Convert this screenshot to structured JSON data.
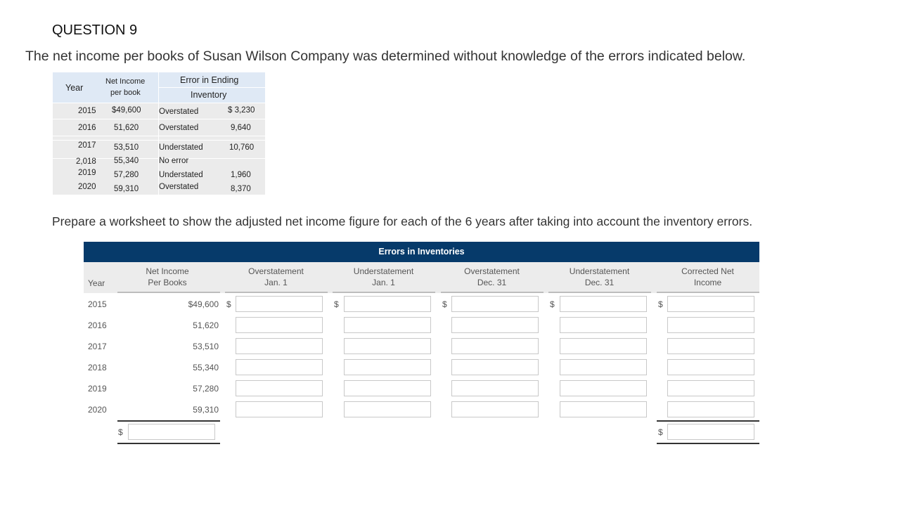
{
  "question_title": "QUESTION 9",
  "intro_text": "The net income per books of Susan Wilson Company was determined without knowledge of the errors indicated below.",
  "given_table": {
    "headers": {
      "year": "Year",
      "net_income_1": "Net Income",
      "net_income_2": "per book",
      "error_1": "Error in Ending",
      "error_2": "Inventory"
    },
    "rows": [
      {
        "year": "2015",
        "net_income": "$49,600",
        "error_type": "Overstated",
        "amount": "$ 3,230"
      },
      {
        "year": "2016",
        "net_income": "51,620",
        "error_type": "Overstated",
        "amount": "9,640"
      },
      {
        "year": "2017",
        "net_income": "53,510",
        "error_type": "Understated",
        "amount": "10,760"
      },
      {
        "year": "2,018",
        "net_income": "55,340",
        "error_type": "No error",
        "amount": ""
      },
      {
        "year": "2019",
        "net_income": "57,280",
        "error_type": "Understated",
        "amount": "1,960"
      },
      {
        "year": "2020",
        "net_income": "59,310",
        "error_type": "Overstated",
        "amount": "8,370"
      }
    ]
  },
  "prepare_text": "Prepare a worksheet to show the adjusted net income figure for each of the 6 years after taking into account the inventory errors.",
  "worksheet": {
    "band_title": "Errors in Inventories",
    "headers": {
      "year": "Year",
      "net_income_1": "Net Income",
      "net_income_2": "Per Books",
      "over_jan_1": "Overstatement",
      "over_jan_2": "Jan. 1",
      "under_jan_1": "Understatement",
      "under_jan_2": "Jan. 1",
      "over_dec_1": "Overstatement",
      "over_dec_2": "Dec. 31",
      "under_dec_1": "Understatement",
      "under_dec_2": "Dec. 31",
      "corrected_1": "Corrected Net",
      "corrected_2": "Income"
    },
    "currency_symbol": "$",
    "rows": [
      {
        "year": "2015",
        "net_income": "$49,600"
      },
      {
        "year": "2016",
        "net_income": "51,620"
      },
      {
        "year": "2017",
        "net_income": "53,510"
      },
      {
        "year": "2018",
        "net_income": "55,340"
      },
      {
        "year": "2019",
        "net_income": "57,280"
      },
      {
        "year": "2020",
        "net_income": "59,310"
      }
    ],
    "inputs_value": ""
  },
  "colors": {
    "band": "#063a6a",
    "header_bg": "#ececec",
    "given_header_bg": "#dfe9f5",
    "given_row_bg": "#ebebeb"
  }
}
